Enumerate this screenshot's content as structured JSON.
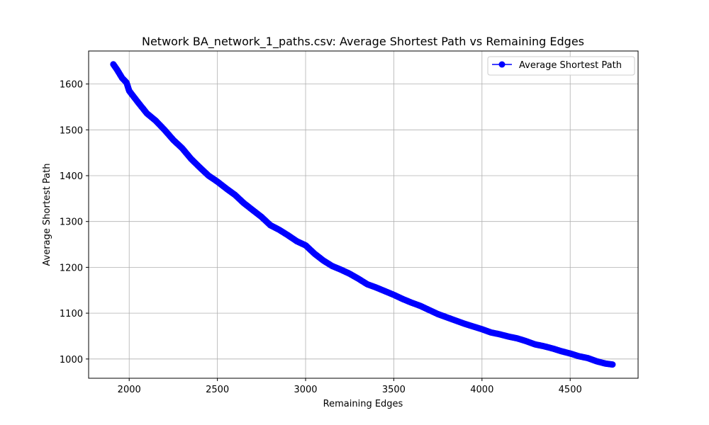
{
  "chart_data": {
    "type": "line",
    "title": "Network BA_network_1_paths.csv: Average Shortest Path vs Remaining Edges",
    "xlabel": "Remaining Edges",
    "ylabel": "Average Shortest Path",
    "xlim": [
      1770,
      4885
    ],
    "ylim": [
      958,
      1672
    ],
    "xticks": [
      2000,
      2500,
      3000,
      3500,
      4000,
      4500
    ],
    "yticks": [
      1000,
      1100,
      1200,
      1300,
      1400,
      1500,
      1600
    ],
    "grid": true,
    "legend": "top-right",
    "series": [
      {
        "name": "Average Shortest Path",
        "color": "#0000ff",
        "marker": "circle",
        "x": [
          1910,
          1930,
          1960,
          1985,
          2000,
          2050,
          2100,
          2150,
          2200,
          2250,
          2300,
          2350,
          2400,
          2450,
          2500,
          2550,
          2600,
          2650,
          2700,
          2750,
          2800,
          2850,
          2900,
          2950,
          3000,
          3050,
          3100,
          3150,
          3200,
          3250,
          3300,
          3350,
          3400,
          3450,
          3500,
          3550,
          3600,
          3650,
          3700,
          3750,
          3800,
          3850,
          3900,
          3950,
          4000,
          4050,
          4100,
          4150,
          4200,
          4250,
          4300,
          4350,
          4400,
          4450,
          4500,
          4550,
          4600,
          4650,
          4700,
          4740
        ],
        "y": [
          1643,
          1632,
          1613,
          1603,
          1585,
          1560,
          1536,
          1520,
          1500,
          1478,
          1460,
          1437,
          1418,
          1400,
          1387,
          1372,
          1358,
          1340,
          1325,
          1310,
          1292,
          1282,
          1270,
          1257,
          1248,
          1230,
          1215,
          1203,
          1195,
          1186,
          1175,
          1163,
          1156,
          1148,
          1140,
          1131,
          1123,
          1116,
          1107,
          1098,
          1091,
          1084,
          1077,
          1071,
          1065,
          1058,
          1054,
          1049,
          1045,
          1039,
          1032,
          1028,
          1023,
          1017,
          1012,
          1006,
          1002,
          995,
          990,
          988
        ]
      }
    ]
  }
}
